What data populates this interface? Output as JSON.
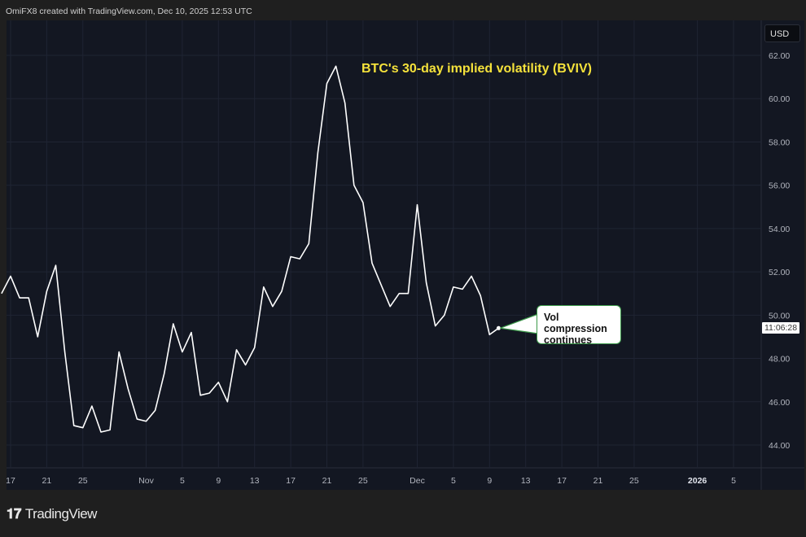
{
  "header": {
    "credit": "OmiFX8 created with TradingView.com, Dec 10, 2025 12:53 UTC"
  },
  "footer": {
    "logo_text": "TradingView",
    "logo_mark": "17"
  },
  "currency_button": "USD",
  "colors": {
    "background": "#131722",
    "line": "#ffffff",
    "title": "#f5e23b",
    "callout_border": "#3c9a4a",
    "grid": "#1f2433"
  },
  "chart_data": {
    "type": "line",
    "title": "BTC's 30-day implied volatility (BVIV)",
    "annotation": "Vol compression continues",
    "current_time_label": "11:06:28",
    "ylim": [
      43,
      63.5
    ],
    "yticks": [
      "44.00",
      "46.00",
      "48.00",
      "50.00",
      "52.00",
      "54.00",
      "56.00",
      "58.00",
      "60.00",
      "62.00"
    ],
    "xticks": [
      {
        "date": "2025-10-17",
        "label": "17"
      },
      {
        "date": "2025-10-21",
        "label": "21"
      },
      {
        "date": "2025-10-25",
        "label": "25"
      },
      {
        "date": "2025-11-01",
        "label": "Nov"
      },
      {
        "date": "2025-11-05",
        "label": "5"
      },
      {
        "date": "2025-11-09",
        "label": "9"
      },
      {
        "date": "2025-11-13",
        "label": "13"
      },
      {
        "date": "2025-11-17",
        "label": "17"
      },
      {
        "date": "2025-11-21",
        "label": "21"
      },
      {
        "date": "2025-11-25",
        "label": "25"
      },
      {
        "date": "2025-12-01",
        "label": "Dec"
      },
      {
        "date": "2025-12-05",
        "label": "5"
      },
      {
        "date": "2025-12-09",
        "label": "9"
      },
      {
        "date": "2025-12-13",
        "label": "13"
      },
      {
        "date": "2025-12-17",
        "label": "17"
      },
      {
        "date": "2025-12-21",
        "label": "21"
      },
      {
        "date": "2025-12-25",
        "label": "25"
      },
      {
        "date": "2026-01-01",
        "label": "2026"
      },
      {
        "date": "2026-01-05",
        "label": "5"
      }
    ],
    "xrange": [
      "2025-10-16",
      "2026-01-07"
    ],
    "grid": true,
    "start_date": "2025-10-16",
    "values": [
      51.0,
      51.8,
      50.8,
      50.8,
      49.0,
      51.1,
      52.3,
      48.3,
      44.9,
      44.8,
      45.8,
      44.6,
      44.7,
      48.3,
      46.6,
      45.2,
      45.1,
      45.6,
      47.3,
      49.6,
      48.3,
      49.2,
      46.3,
      46.4,
      46.9,
      46.0,
      48.4,
      47.7,
      48.5,
      51.3,
      50.4,
      51.1,
      52.7,
      52.6,
      53.3,
      57.5,
      60.7,
      61.5,
      59.8,
      56.0,
      55.2,
      52.4,
      51.4,
      50.4,
      51.0,
      51.0,
      55.1,
      51.5,
      49.5,
      50.0,
      51.3,
      51.2,
      51.8,
      50.9,
      49.1,
      49.4
    ]
  }
}
